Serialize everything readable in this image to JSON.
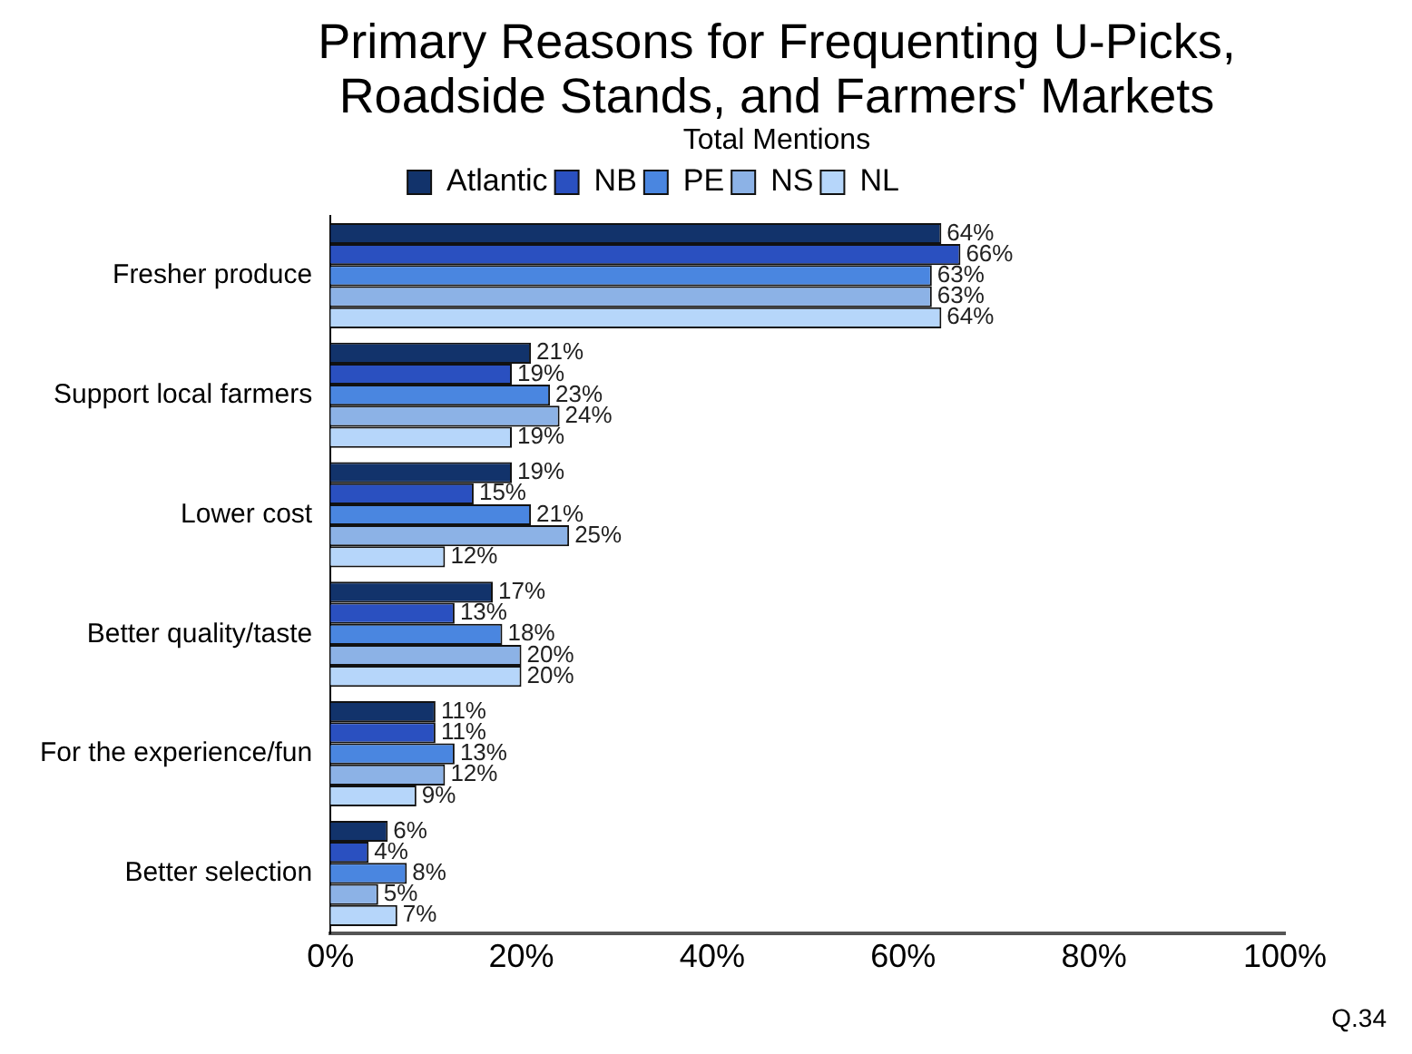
{
  "chart_data": {
    "type": "bar",
    "orientation": "horizontal",
    "title": "Primary Reasons for Frequenting U-Picks, Roadside Stands, and Farmers' Markets",
    "subtitle": "Total Mentions",
    "categories": [
      "Fresher produce",
      "Support local farmers",
      "Lower cost",
      "Better quality/taste",
      "For the experience/fun",
      "Better selection"
    ],
    "series": [
      {
        "name": "Atlantic",
        "color": "#12336b",
        "values": [
          64,
          21,
          19,
          17,
          11,
          6
        ],
        "value_labels": [
          "64%",
          "21%",
          "19%",
          "17%",
          "11%",
          "6%"
        ]
      },
      {
        "name": "NB",
        "color": "#2a50c0",
        "values": [
          66,
          19,
          15,
          13,
          11,
          4
        ],
        "value_labels": [
          "66%",
          "19%",
          "15%",
          "13%",
          "11%",
          "4%"
        ]
      },
      {
        "name": "PE",
        "color": "#4a86e0",
        "values": [
          63,
          23,
          21,
          18,
          13,
          8
        ],
        "value_labels": [
          "63%",
          "23%",
          "21%",
          "18%",
          "13%",
          "8%"
        ]
      },
      {
        "name": "NS",
        "color": "#8cb2e6",
        "values": [
          63,
          24,
          25,
          20,
          12,
          5
        ],
        "value_labels": [
          "63%",
          "24%",
          "25%",
          "20%",
          "12%",
          "5%"
        ]
      },
      {
        "name": "NL",
        "color": "#b6d6fa",
        "values": [
          64,
          19,
          12,
          20,
          9,
          7
        ],
        "value_labels": [
          "64%",
          "19%",
          "12%",
          "20%",
          "9%",
          "7%"
        ]
      }
    ],
    "xlim": [
      0,
      100
    ],
    "xticks": [
      {
        "value": 0,
        "label": "0%"
      },
      {
        "value": 20,
        "label": "20%"
      },
      {
        "value": 40,
        "label": "40%"
      },
      {
        "value": 60,
        "label": "60%"
      },
      {
        "value": 80,
        "label": "80%"
      },
      {
        "value": 100,
        "label": "100%"
      }
    ],
    "grid": false,
    "legend": "top",
    "annotations": [
      "Q.34"
    ]
  }
}
